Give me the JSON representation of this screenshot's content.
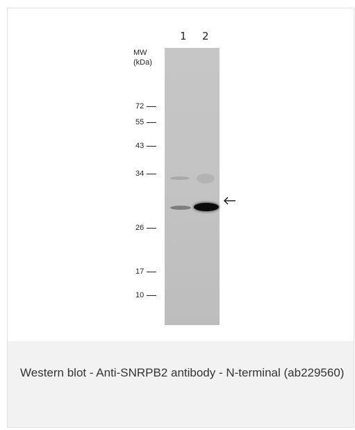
{
  "figure": {
    "lane_labels": [
      "1",
      "2"
    ],
    "mw_label_line1": "MW",
    "mw_label_line2": "(kDa)",
    "markers": [
      "72",
      "55",
      "43",
      "34",
      "26",
      "17",
      "10"
    ],
    "arrow_icon": "left-arrow-icon",
    "colors": {
      "membrane": "#c4c4c4",
      "band_strong": "#0a0a0a"
    }
  },
  "caption": {
    "text": "Western blot - Anti-SNRPB2 antibody - N-terminal (ab229560)"
  }
}
